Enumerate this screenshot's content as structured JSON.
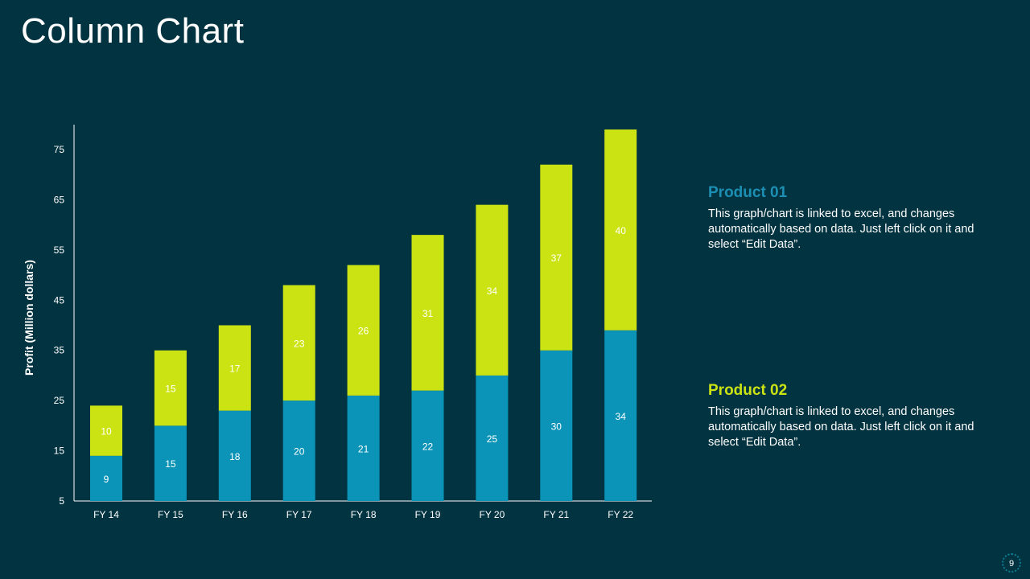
{
  "slide": {
    "title": "Column Chart",
    "page_number": "9"
  },
  "colors": {
    "background": "#023340",
    "product01": "#0B94B8",
    "product02": "#CCE313",
    "axis": "#ffffff"
  },
  "legend": [
    {
      "title": "Product 01",
      "color": "#1C8FB5",
      "text": "This graph/chart is linked to excel, and changes automatically based on data. Just left click on it and select “Edit Data”."
    },
    {
      "title": "Product 02",
      "color": "#CCE313",
      "text": "This graph/chart is linked to excel, and changes automatically based on data. Just left click on it and select “Edit Data”."
    }
  ],
  "chart_data": {
    "type": "bar",
    "stacked": true,
    "title": "",
    "xlabel": "",
    "ylabel": "Profit  (Million dollars)",
    "ylim": [
      5,
      80
    ],
    "yticks": [
      5,
      15,
      25,
      35,
      45,
      55,
      65,
      75
    ],
    "categories": [
      "FY 14",
      "FY 15",
      "FY 16",
      "FY 17",
      "FY 18",
      "FY 19",
      "FY 20",
      "FY 21",
      "FY 22"
    ],
    "series": [
      {
        "name": "Product 01",
        "color": "#0B94B8",
        "values": [
          9,
          15,
          18,
          20,
          21,
          22,
          25,
          30,
          34
        ]
      },
      {
        "name": "Product 02",
        "color": "#CCE313",
        "values": [
          10,
          15,
          17,
          23,
          26,
          31,
          34,
          37,
          40
        ]
      }
    ],
    "grid": false
  }
}
